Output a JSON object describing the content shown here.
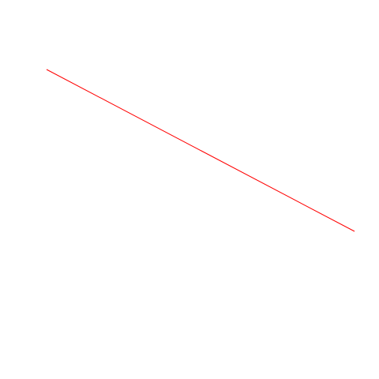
{
  "canvas": {
    "background": "#ffffff"
  },
  "line": {
    "color": "#ff0000"
  }
}
